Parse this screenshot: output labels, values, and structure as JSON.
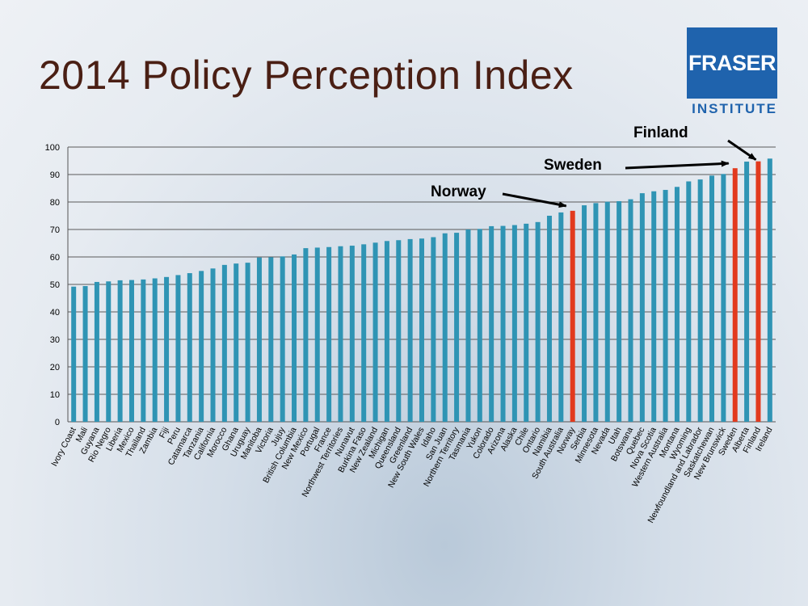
{
  "title": "2014 Policy Perception Index",
  "logo": {
    "name": "FRASER",
    "sub": "INSTITUTE"
  },
  "colors": {
    "bar": "#2f94b4",
    "highlight": "#e23a1e",
    "title": "#4a1f14",
    "logo": "#1f63ad"
  },
  "chart_data": {
    "type": "bar",
    "title": "",
    "xlabel": "",
    "ylabel": "",
    "ylim": [
      0,
      100
    ],
    "yticks": [
      0,
      10,
      20,
      30,
      40,
      50,
      60,
      70,
      80,
      90,
      100
    ],
    "grid": true,
    "categories": [
      "Ivory Coast",
      "Mali",
      "Guyana",
      "Rio Negro",
      "Liberia",
      "Mexico",
      "Thailand",
      "Zambia",
      "Fiji",
      "Peru",
      "Catamarca",
      "Tanzania",
      "California",
      "Morocco",
      "Ghana",
      "Uruguay",
      "Manitoba",
      "Victoria",
      "Jujuy",
      "British Columbia",
      "New Mexico",
      "Portugal",
      "France",
      "Northwest Territories",
      "Nunavut",
      "Burkina Faso",
      "New Zealand",
      "Michigan",
      "Queensland",
      "Greenland",
      "New South Wales",
      "Idaho",
      "San Juan",
      "Northern Territory",
      "Tasmania",
      "Yukon",
      "Colorado",
      "Arizona",
      "Alaska",
      "Chile",
      "Ontario",
      "Namibia",
      "South Australia",
      "Norway",
      "Serbia",
      "Minnesota",
      "Nevada",
      "Utah",
      "Botswana",
      "Quebec",
      "Nova Scotia",
      "Western Australia",
      "Montana",
      "Wyoming",
      "Newfoundland and Labrador",
      "Saskatchewan",
      "New Brunswick",
      "Sweden",
      "Alberta",
      "Finland",
      "Ireland"
    ],
    "values": [
      49.2,
      49.4,
      50.9,
      51.1,
      51.5,
      51.6,
      51.8,
      52.2,
      52.7,
      53.4,
      54.1,
      54.9,
      55.8,
      57.1,
      57.6,
      57.9,
      59.8,
      59.9,
      60.2,
      60.9,
      63.2,
      63.4,
      63.6,
      63.9,
      64.1,
      64.6,
      65.2,
      65.8,
      66.1,
      66.5,
      66.7,
      67.2,
      68.6,
      68.8,
      70.0,
      70.2,
      71.2,
      71.3,
      71.6,
      72.1,
      72.7,
      75.0,
      76.2,
      76.8,
      78.8,
      79.6,
      80.1,
      80.3,
      81.0,
      83.2,
      83.9,
      84.4,
      85.5,
      87.5,
      88.2,
      89.6,
      90.2,
      92.3,
      94.7,
      94.8,
      95.8
    ],
    "highlighted": [
      "Norway",
      "Sweden",
      "Finland"
    ],
    "annotations": [
      {
        "text": "Norway",
        "target": "Norway"
      },
      {
        "text": "Sweden",
        "target": "Sweden"
      },
      {
        "text": "Finland",
        "target": "Finland"
      }
    ]
  }
}
